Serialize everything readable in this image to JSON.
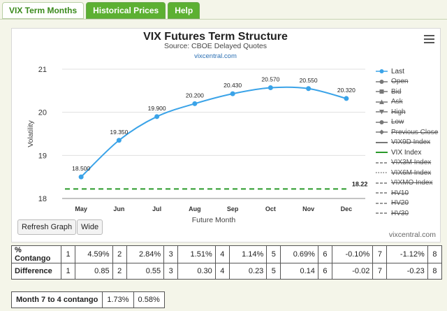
{
  "tabs": [
    {
      "label": "VIX Term Months"
    },
    {
      "label": "Historical Prices"
    },
    {
      "label": "Help"
    }
  ],
  "chart_data": {
    "type": "line",
    "title": "VIX Futures Term Structure",
    "subtitle": "Source: CBOE Delayed Quotes",
    "link": "vixcentral.com",
    "xlabel": "Future Month",
    "ylabel": "Volatility",
    "categories": [
      "May",
      "Jun",
      "Jul",
      "Aug",
      "Sep",
      "Oct",
      "Nov",
      "Dec"
    ],
    "ylim": [
      18,
      21
    ],
    "yticks": [
      18,
      19,
      20,
      21
    ],
    "series": [
      {
        "name": "Last",
        "values": [
          18.5,
          19.35,
          19.9,
          20.2,
          20.43,
          20.57,
          20.55,
          20.32
        ],
        "labels": [
          "18.500",
          "19.350",
          "19.900",
          "20.200",
          "20.430",
          "20.570",
          "20.550",
          "20.320"
        ],
        "color": "#3aa3e8"
      },
      {
        "name": "VIX Index",
        "value": 18.22,
        "label": "18.22",
        "color": "#2a9a2a"
      }
    ],
    "legend_position": "right",
    "grid": true
  },
  "legend": [
    {
      "label": "Last",
      "on": true,
      "sym": "dot-line",
      "color": "#3aa3e8"
    },
    {
      "label": "Open",
      "on": false,
      "sym": "dot-line",
      "color": "#777"
    },
    {
      "label": "Bid",
      "on": false,
      "sym": "square-line",
      "color": "#777"
    },
    {
      "label": "Ask",
      "on": false,
      "sym": "tri-up-line",
      "color": "#777"
    },
    {
      "label": "High",
      "on": false,
      "sym": "tri-down-line",
      "color": "#777"
    },
    {
      "label": "Low",
      "on": false,
      "sym": "dot-line",
      "color": "#777"
    },
    {
      "label": "Previous Close",
      "on": false,
      "sym": "diamond-line",
      "color": "#777"
    },
    {
      "label": "VIX9D Index",
      "on": false,
      "sym": "line",
      "color": "#777"
    },
    {
      "label": "VIX Index",
      "on": true,
      "sym": "line",
      "color": "#2a9a2a"
    },
    {
      "label": "VIX3M Index",
      "on": false,
      "sym": "dash",
      "color": "#777"
    },
    {
      "label": "VIX6M Index",
      "on": false,
      "sym": "dot",
      "color": "#777"
    },
    {
      "label": "VIXMO Index",
      "on": false,
      "sym": "dash",
      "color": "#777"
    },
    {
      "label": "HV10",
      "on": false,
      "sym": "dash",
      "color": "#777"
    },
    {
      "label": "HV20",
      "on": false,
      "sym": "dash",
      "color": "#777"
    },
    {
      "label": "HV30",
      "on": false,
      "sym": "dash",
      "color": "#777"
    }
  ],
  "buttons": {
    "refresh": "Refresh Graph",
    "wide": "Wide"
  },
  "watermark": "vixcentral.com",
  "contango": {
    "label": "% Contango",
    "cells": [
      {
        "idx": "1",
        "val": "4.59%"
      },
      {
        "idx": "2",
        "val": "2.84%"
      },
      {
        "idx": "3",
        "val": "1.51%"
      },
      {
        "idx": "4",
        "val": "1.14%"
      },
      {
        "idx": "5",
        "val": "0.69%"
      },
      {
        "idx": "6",
        "val": "-0.10%"
      },
      {
        "idx": "7",
        "val": "-1.12%"
      }
    ],
    "end": "8"
  },
  "difference": {
    "label": "Difference",
    "cells": [
      {
        "idx": "1",
        "val": "0.85"
      },
      {
        "idx": "2",
        "val": "0.55"
      },
      {
        "idx": "3",
        "val": "0.30"
      },
      {
        "idx": "4",
        "val": "0.23"
      },
      {
        "idx": "5",
        "val": "0.14"
      },
      {
        "idx": "6",
        "val": "-0.02"
      },
      {
        "idx": "7",
        "val": "-0.23"
      }
    ],
    "end": "8"
  },
  "month74": {
    "label": "Month 7 to 4 contango",
    "v1": "1.73%",
    "v2": "0.58%"
  }
}
